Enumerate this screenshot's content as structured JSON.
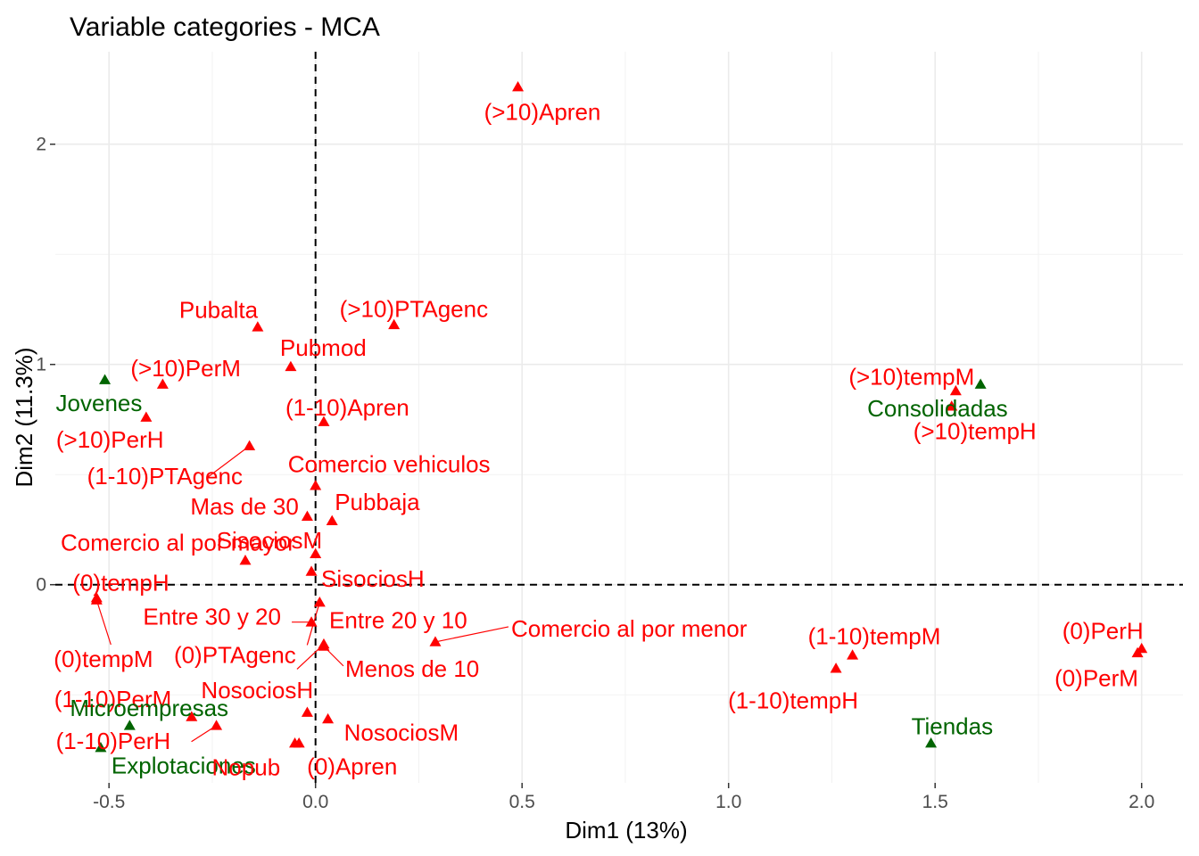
{
  "chart_data": {
    "type": "scatter",
    "title": "Variable categories - MCA",
    "xlabel": "Dim1 (13%)",
    "ylabel": "Dim2 (11.3%)",
    "xlim": [
      -0.63,
      2.1
    ],
    "ylim": [
      -0.9,
      2.42
    ],
    "x_ticks": [
      -0.5,
      0.0,
      0.5,
      1.0,
      1.5,
      2.0
    ],
    "x_tick_labels": [
      "-0.5",
      "0.0",
      "0.5",
      "1.0",
      "1.5",
      "2.0"
    ],
    "y_ticks": [
      0,
      1,
      2
    ],
    "y_tick_labels": [
      "0",
      "1",
      "2"
    ],
    "grid": true,
    "reference_lines": {
      "x": 0,
      "y": 0,
      "style": "dashed"
    },
    "colors": {
      "red": "#ff0000",
      "green": "#006400"
    },
    "points": [
      {
        "label": "(>10)Apren",
        "x": 0.49,
        "y": 2.26,
        "color": "red"
      },
      {
        "label": "(>10)PTAgenc",
        "x": 0.19,
        "y": 1.18,
        "color": "red"
      },
      {
        "label": "Pubalta",
        "x": -0.14,
        "y": 1.17,
        "color": "red"
      },
      {
        "label": "Pubmod",
        "x": -0.06,
        "y": 0.99,
        "color": "red"
      },
      {
        "label": "(>10)PerM",
        "x": -0.37,
        "y": 0.91,
        "color": "red"
      },
      {
        "label": "Jovenes",
        "x": -0.51,
        "y": 0.93,
        "color": "green"
      },
      {
        "label": "(1-10)Apren",
        "x": 0.02,
        "y": 0.74,
        "color": "red"
      },
      {
        "label": "(>10)PerH",
        "x": -0.41,
        "y": 0.76,
        "color": "red"
      },
      {
        "label": "(1-10)PTAgenc",
        "x": -0.16,
        "y": 0.63,
        "color": "red"
      },
      {
        "label": "Comercio vehiculos",
        "x": 0.0,
        "y": 0.45,
        "color": "red"
      },
      {
        "label": "Pubbaja",
        "x": 0.04,
        "y": 0.29,
        "color": "red"
      },
      {
        "label": "Mas de 30",
        "x": -0.02,
        "y": 0.31,
        "color": "red"
      },
      {
        "label": "Comercio al por mayor",
        "x": -0.17,
        "y": 0.11,
        "color": "red"
      },
      {
        "label": "SisociosM",
        "x": 0.0,
        "y": 0.14,
        "color": "red"
      },
      {
        "label": "SisociosH",
        "x": -0.01,
        "y": 0.06,
        "color": "red"
      },
      {
        "label": "(0)tempH",
        "x": -0.53,
        "y": -0.06,
        "color": "red"
      },
      {
        "label": "(0)tempM",
        "x": -0.53,
        "y": -0.07,
        "color": "red"
      },
      {
        "label": "Entre 30 y 20",
        "x": 0.01,
        "y": -0.08,
        "color": "red"
      },
      {
        "label": "Entre 20 y 10",
        "x": -0.01,
        "y": -0.17,
        "color": "red"
      },
      {
        "label": "Comercio al por menor",
        "x": 0.29,
        "y": -0.26,
        "color": "red"
      },
      {
        "label": "(0)PTAgenc",
        "x": 0.02,
        "y": -0.27,
        "color": "red"
      },
      {
        "label": "Menos de 10",
        "x": 0.02,
        "y": -0.28,
        "color": "red"
      },
      {
        "label": "(1-10)tempM",
        "x": 1.3,
        "y": -0.32,
        "color": "red"
      },
      {
        "label": "(1-10)tempH",
        "x": 1.26,
        "y": -0.38,
        "color": "red"
      },
      {
        "label": "(0)PerH",
        "x": 2.0,
        "y": -0.29,
        "color": "red"
      },
      {
        "label": "(0)PerM",
        "x": 1.99,
        "y": -0.31,
        "color": "red"
      },
      {
        "label": "(>10)tempM",
        "x": 1.55,
        "y": 0.88,
        "color": "red"
      },
      {
        "label": "Consolidadas",
        "x": 1.61,
        "y": 0.91,
        "color": "green"
      },
      {
        "label": "(>10)tempH",
        "x": 1.54,
        "y": 0.81,
        "color": "red"
      },
      {
        "label": "(1-10)PerM",
        "x": -0.3,
        "y": -0.6,
        "color": "red"
      },
      {
        "label": "Microempresas",
        "x": -0.45,
        "y": -0.64,
        "color": "green"
      },
      {
        "label": "NosociosH",
        "x": -0.02,
        "y": -0.58,
        "color": "red"
      },
      {
        "label": "NosociosM",
        "x": 0.03,
        "y": -0.61,
        "color": "red"
      },
      {
        "label": "(1-10)PerH",
        "x": -0.24,
        "y": -0.64,
        "color": "red"
      },
      {
        "label": "Explotaciones",
        "x": -0.52,
        "y": -0.74,
        "color": "green"
      },
      {
        "label": "Nopub",
        "x": -0.05,
        "y": -0.72,
        "color": "red"
      },
      {
        "label": "(0)Apren",
        "x": -0.04,
        "y": -0.72,
        "color": "red"
      },
      {
        "label": "Tiendas",
        "x": 1.49,
        "y": -0.72,
        "color": "green"
      }
    ]
  }
}
